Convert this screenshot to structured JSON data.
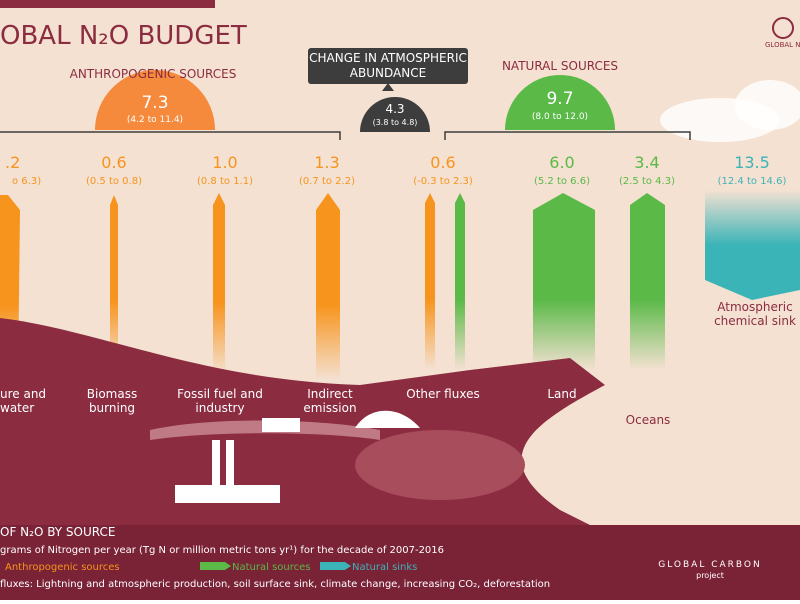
{
  "header": {
    "title": "OBAL N₂O BUDGET",
    "logo": "GLOBAL N"
  },
  "totals": [
    {
      "label": "ANTHROPOGENIC SOURCES",
      "value": "7.3",
      "range": "(4.2 to 11.4)"
    },
    {
      "label": "CHANGE IN ATMOSPHERIC ABUNDANCE",
      "value": "4.3",
      "range": "(3.8 to 4.8)"
    },
    {
      "label": "NATURAL SOURCES",
      "value": "9.7",
      "range": "(8.0 to 12.0)"
    }
  ],
  "fluxes": [
    {
      "value": ".2",
      "range": "o 6.3)",
      "label": [
        "ure and",
        "water"
      ]
    },
    {
      "value": "0.6",
      "range": "(0.5 to 0.8)",
      "label": [
        "Biomass",
        "burning"
      ]
    },
    {
      "value": "1.0",
      "range": "(0.8 to 1.1)",
      "label": [
        "Fossil fuel and",
        "industry"
      ]
    },
    {
      "value": "1.3",
      "range": "(0.7 to 2.2)",
      "label": [
        "Indirect",
        "emission"
      ]
    },
    {
      "value": "0.6",
      "range": "(-0.3 to 2.3)",
      "label": [
        "Other fluxes"
      ]
    },
    {
      "value": "6.0",
      "range": "(5.2 to 6.6)",
      "label": [
        "Land"
      ]
    },
    {
      "value": "3.4",
      "range": "(2.5 to 4.3)",
      "label": [
        "Oceans"
      ]
    },
    {
      "value": "13.5",
      "range": "(12.4 to 14.6)",
      "label": [
        "Atmospheric",
        "chemical sink"
      ]
    }
  ],
  "footer": {
    "title": "OF N₂O BY SOURCE",
    "units": "grams of Nitrogen per year (Tg N or million metric tons yr¹) for the decade of 2007-2016",
    "legend": [
      "Anthropogenic sources",
      "Natural sources",
      "Natural sinks"
    ],
    "note": "fluxes: Lightning and atmospheric production, soil surface sink, climate change, increasing CO₂, deforestation",
    "brand": [
      "GLOBAL CARBON",
      "project"
    ]
  }
}
